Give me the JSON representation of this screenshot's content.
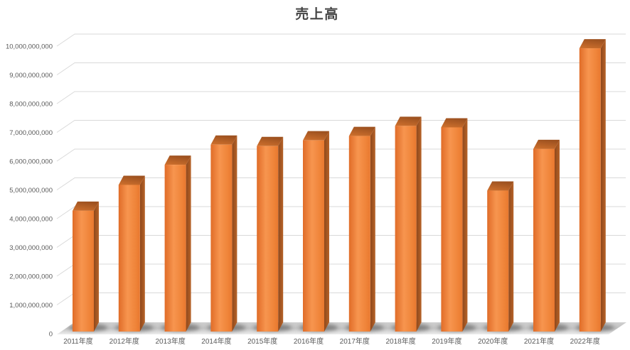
{
  "chart_data": {
    "type": "bar",
    "style": "3d-column",
    "title": "売上高",
    "categories": [
      "2011年度",
      "2012年度",
      "2013年度",
      "2014年度",
      "2015年度",
      "2016年度",
      "2017年度",
      "2018年度",
      "2019年度",
      "2020年度",
      "2021年度",
      "2022年度"
    ],
    "values": [
      4200000000,
      5100000000,
      5800000000,
      6500000000,
      6450000000,
      6650000000,
      6800000000,
      7150000000,
      7100000000,
      4900000000,
      6350000000,
      9850000000
    ],
    "xlabel": "",
    "ylabel": "",
    "ylim": [
      0,
      10000000000
    ],
    "ytick_step": 1000000000,
    "ytick_labels": [
      "0",
      "1,000,000,000",
      "2,000,000,000",
      "3,000,000,000",
      "4,000,000,000",
      "5,000,000,000",
      "6,000,000,000",
      "7,000,000,000",
      "8,000,000,000",
      "9,000,000,000",
      "10,000,000,000"
    ],
    "grid": true,
    "legend": "none",
    "colors": {
      "bar": "#ED7D31",
      "bar_front_dark": "#E06C28",
      "bar_front_light": "#F7954F",
      "bar_top": "#C06527",
      "bar_side": "#9C5120",
      "gridline": "#D9D9D9",
      "axis_text": "#595959",
      "title_text": "#444444",
      "floor": "#C9C9C9",
      "background": "#FFFFFF"
    }
  }
}
